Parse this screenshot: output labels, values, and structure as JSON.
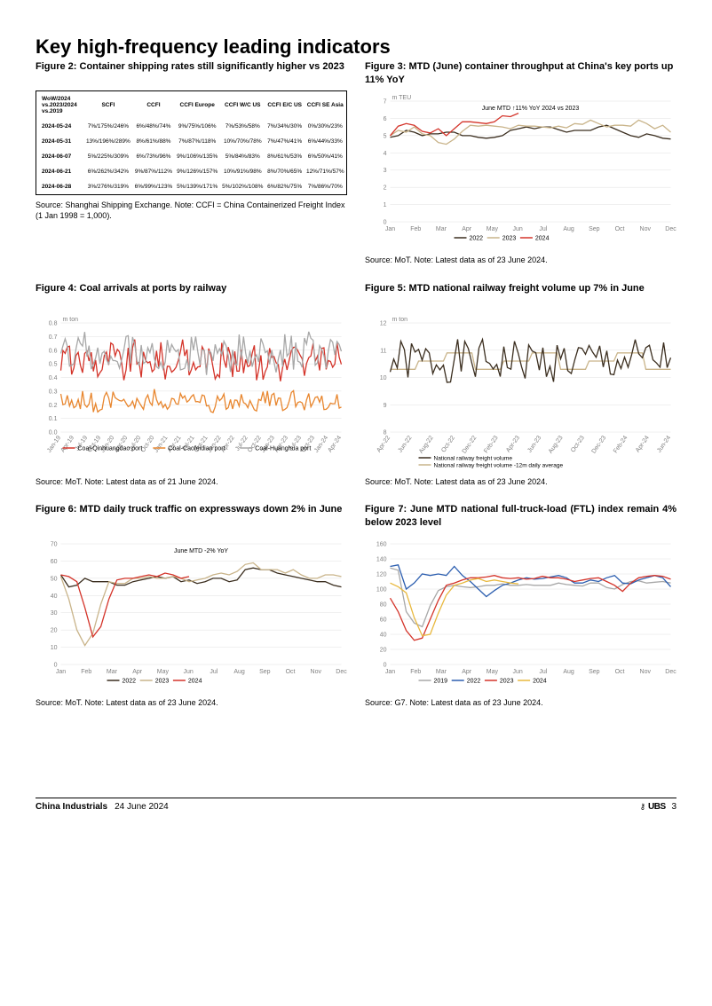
{
  "page_title": "Key high-frequency leading indicators",
  "grid_color": "#e0e0e0",
  "axis_color": "#808080",
  "label_color": "#808080",
  "tick_font_size": 7,
  "figure2": {
    "title": "Figure 2: Container shipping rates still significantly higher vs 2023",
    "source": "Source: Shanghai Shipping Exchange. Note: CCFI = China Containerized Freight Index (1 Jan 1998 = 1,000).",
    "headers": [
      "WoW/2024 vs.2023/2024 vs.2019",
      "SCFI",
      "CCFI",
      "CCFI Europe",
      "CCFI W/C US",
      "CCFI E/C US",
      "CCFI SE Asia"
    ],
    "rows": [
      [
        "2024-05-24",
        "7%/175%/246%",
        "6%/48%/74%",
        "9%/75%/106%",
        "7%/53%/58%",
        "7%/34%/30%",
        "0%/30%/23%"
      ],
      [
        "2024-05-31",
        "13%/196%/289%",
        "8%/61%/88%",
        "7%/87%/118%",
        "10%/70%/78%",
        "7%/47%/41%",
        "6%/44%/33%"
      ],
      [
        "2024-06-07",
        "5%/225%/309%",
        "6%/73%/96%",
        "9%/106%/135%",
        "5%/84%/83%",
        "8%/61%/53%",
        "6%/50%/41%"
      ],
      [
        "2024-06-21",
        "6%/262%/342%",
        "9%/87%/112%",
        "9%/126%/157%",
        "10%/91%/98%",
        "8%/70%/65%",
        "12%/71%/57%"
      ],
      [
        "2024-06-28",
        "3%/276%/319%",
        "6%/99%/123%",
        "5%/139%/171%",
        "5%/102%/108%",
        "6%/82%/75%",
        "7%/86%/70%"
      ]
    ]
  },
  "figure3": {
    "title": "Figure 3: MTD (June) container throughput at China's key ports up 11% YoY",
    "source": "Source: MoT. Note: Latest data as of 23 June 2024.",
    "ylabel": "m TEU",
    "annotation": "June MTD ↑11% YoY 2024 vs 2023",
    "ymin": 0,
    "ymax": 7,
    "ytick": 1,
    "xlabels": [
      "Jan",
      "Feb",
      "Mar",
      "Apr",
      "May",
      "Jun",
      "Jul",
      "Aug",
      "Sep",
      "Oct",
      "Nov",
      "Dec"
    ],
    "series": [
      {
        "name": "2022",
        "color": "#3b2e1f",
        "y": [
          4.9,
          5.0,
          5.3,
          5.2,
          5.0,
          5.1,
          5.1,
          5.2,
          5.2,
          5.0,
          5.0,
          4.9,
          4.85,
          4.9,
          5.0,
          5.3,
          5.4,
          5.5,
          5.4,
          5.5,
          5.5,
          5.35,
          5.2,
          5.3,
          5.3,
          5.3,
          5.5,
          5.6,
          5.4,
          5.2,
          5.0,
          4.9,
          5.1,
          5.0,
          4.85,
          4.8
        ]
      },
      {
        "name": "2023",
        "color": "#c9b48a",
        "y": [
          5.0,
          5.3,
          5.2,
          5.5,
          5.1,
          5.0,
          4.6,
          4.5,
          4.8,
          5.25,
          5.6,
          5.55,
          5.6,
          5.55,
          5.5,
          5.4,
          5.6,
          5.55,
          5.55,
          5.5,
          5.45,
          5.55,
          5.45,
          5.7,
          5.65,
          5.9,
          5.7,
          5.5,
          5.6,
          5.6,
          5.55,
          5.9,
          5.7,
          5.4,
          5.6,
          5.2
        ]
      },
      {
        "name": "2024",
        "color": "#d4342a",
        "y": [
          5.0,
          5.55,
          5.7,
          5.6,
          5.25,
          5.15,
          5.4,
          5.0,
          5.4,
          5.8,
          5.8,
          5.75,
          5.7,
          5.8,
          6.15,
          6.1,
          6.3
        ],
        "partial": true
      }
    ]
  },
  "figure4": {
    "title": "Figure 4: Coal arrivals at ports by railway",
    "source": "Source: MoT. Note: Latest data as of 21 June 2024.",
    "ylabel": "m ton",
    "ymin": 0,
    "ymax": 0.8,
    "ytick": 0.1,
    "xlabels": [
      "Jan-19",
      "Apr-19",
      "Jul-19",
      "Oct-19",
      "Jan-20",
      "Apr-20",
      "Jul-20",
      "Oct-20",
      "Jan-21",
      "Apr-21",
      "Jul-21",
      "Oct-21",
      "Jan-22",
      "Apr-22",
      "Jul-22",
      "Oct-22",
      "Jan-23",
      "Apr-23",
      "Jul-23",
      "Oct-23",
      "Jan-24",
      "Apr-24"
    ],
    "series": [
      {
        "name": "Coal-Qinhuangdao port",
        "color": "#d4342a"
      },
      {
        "name": "Coal-Caofeidian port",
        "color": "#e8862e"
      },
      {
        "name": "Coal-Huanghua port",
        "color": "#a8a8a8"
      }
    ]
  },
  "figure5": {
    "title": "Figure 5: MTD national railway freight volume up 7% in June",
    "source": "Source: MoT. Note: Latest data as of 23 June 2024.",
    "ylabel": "m ton",
    "ymin": 8,
    "ymax": 12,
    "ytick": 1,
    "xlabels": [
      "Apr-22",
      "Jun-22",
      "Aug-22",
      "Oct-22",
      "Dec-22",
      "Feb-23",
      "Apr-23",
      "Jun-23",
      "Aug-23",
      "Oct-23",
      "Dec-23",
      "Feb-24",
      "Apr-24",
      "Jun-24"
    ],
    "series": [
      {
        "name": "National railway freight volume",
        "color": "#3b2e1f"
      },
      {
        "name": "National railway freight volume -12m daily average",
        "color": "#c9b48a"
      }
    ]
  },
  "figure6": {
    "title": "Figure 6: MTD daily truck traffic on expressways down 2% in June",
    "source": "Source: MoT. Note: Latest data as of 23 June 2024.",
    "annotation": "June MTD -2% YoY",
    "ymin": 0,
    "ymax": 70,
    "ytick": 10,
    "xlabels": [
      "Jan",
      "Feb",
      "Mar",
      "Apr",
      "May",
      "Jun",
      "Jul",
      "Aug",
      "Sep",
      "Oct",
      "Nov",
      "Dec"
    ],
    "series": [
      {
        "name": "2022",
        "color": "#3b2e1f",
        "y": [
          52,
          45,
          46,
          50,
          48,
          48,
          48,
          46,
          46,
          48,
          49,
          50,
          51,
          50,
          51,
          48,
          49,
          47,
          48,
          50,
          50,
          48,
          49,
          55,
          56,
          55,
          55,
          53,
          52,
          51,
          50,
          49,
          48,
          48,
          46,
          45
        ]
      },
      {
        "name": "2023",
        "color": "#c9b48a",
        "y": [
          51,
          38,
          20,
          11,
          18,
          35,
          48,
          47,
          47,
          50,
          50,
          51,
          50,
          50,
          51,
          50,
          48,
          49,
          50,
          52,
          53,
          52,
          54,
          58,
          59,
          55,
          55,
          55,
          53,
          55,
          52,
          50,
          50,
          52,
          52,
          51
        ]
      },
      {
        "name": "2024",
        "color": "#d4342a",
        "y": [
          52,
          51,
          48,
          33,
          16,
          22,
          38,
          49,
          50,
          50,
          51,
          52,
          51,
          53,
          52,
          50,
          51
        ],
        "partial": true
      }
    ]
  },
  "figure7": {
    "title": "Figure 7: June MTD national full-truck-load (FTL) index remain 4% below 2023 level",
    "source": "Source: G7. Note: Latest data as of 23 June 2024.",
    "ymin": 0,
    "ymax": 160,
    "ytick": 20,
    "xlabels": [
      "Jan",
      "Feb",
      "Mar",
      "Apr",
      "May",
      "Jun",
      "Jul",
      "Aug",
      "Sep",
      "Oct",
      "Nov",
      "Dec"
    ],
    "series": [
      {
        "name": "2019",
        "color": "#a8a8a8",
        "y": [
          128,
          125,
          70,
          55,
          50,
          78,
          98,
          103,
          105,
          103,
          102,
          103,
          105,
          105,
          107,
          105,
          105,
          106,
          105,
          105,
          105,
          108,
          106,
          105,
          104,
          108,
          108,
          102,
          100,
          106,
          110,
          111,
          108,
          109,
          110,
          108
        ]
      },
      {
        "name": "2022",
        "color": "#2d5fb0",
        "y": [
          130,
          132,
          100,
          108,
          120,
          118,
          120,
          118,
          130,
          118,
          110,
          100,
          90,
          98,
          105,
          108,
          112,
          115,
          113,
          114,
          116,
          118,
          115,
          108,
          108,
          112,
          110,
          115,
          118,
          108,
          107,
          112,
          115,
          118,
          115,
          103
        ]
      },
      {
        "name": "2023",
        "color": "#d4342a",
        "y": [
          88,
          70,
          45,
          32,
          35,
          60,
          85,
          105,
          108,
          112,
          115,
          115,
          116,
          118,
          115,
          114,
          115,
          113,
          114,
          117,
          115,
          115,
          113,
          110,
          112,
          114,
          115,
          110,
          105,
          97,
          108,
          115,
          117,
          118,
          117,
          113
        ]
      },
      {
        "name": "2024",
        "color": "#e8b83e",
        "y": [
          108,
          103,
          95,
          62,
          38,
          40,
          68,
          92,
          105,
          108,
          112,
          114,
          110,
          112,
          110,
          108,
          107
        ],
        "partial": true
      }
    ]
  },
  "footer": {
    "title": "China Industrials",
    "date": "24 June 2024",
    "brand": "UBS",
    "page": "3"
  }
}
